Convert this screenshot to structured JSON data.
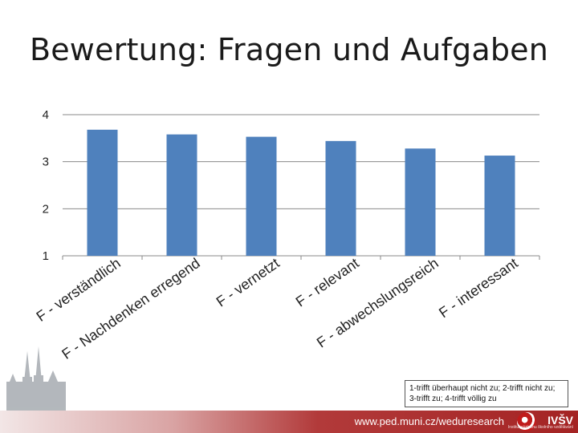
{
  "slide": {
    "title": "Bewertung: Fragen und Aufgaben",
    "legend_note": "1-trifft überhaupt nicht zu; 2-trifft nicht zu; 3-trifft zu; 4-trifft völlig zu",
    "footer_url": "www.ped.muni.cz/weduresearch",
    "logo_text": "IVŠV",
    "logo_subtitle": "Institut výzkumu školního vzdělávání"
  },
  "chart_data": {
    "type": "bar",
    "categories": [
      "F - verständlich",
      "F - Nachdenken erregend",
      "F - vernetzt",
      "F - relevant",
      "F - abwechslungsreich",
      "F - interessant"
    ],
    "values": [
      3.68,
      3.58,
      3.53,
      3.44,
      3.28,
      3.13
    ],
    "yticks": [
      "1",
      "2",
      "3",
      "4"
    ],
    "ylim": [
      1,
      4
    ],
    "grid": true,
    "color": "#4f81bd"
  }
}
